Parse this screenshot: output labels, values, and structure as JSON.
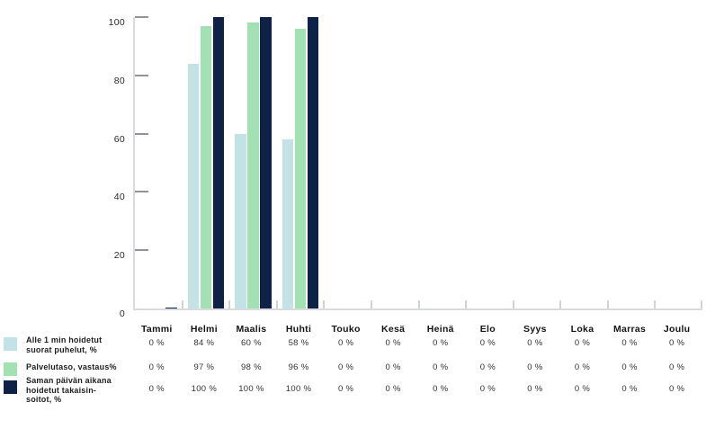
{
  "chart_data": {
    "type": "bar",
    "title": "",
    "xlabel": "",
    "ylabel": "",
    "categories": [
      "Tammi",
      "Helmi",
      "Maalis",
      "Huhti",
      "Touko",
      "Kesä",
      "Heinä",
      "Elo",
      "Syys",
      "Loka",
      "Marras",
      "Joulu"
    ],
    "series": [
      {
        "name": "Alle 1 min hoidetut suorat puhelut, %",
        "color": "#c3e2e5",
        "values": [
          0,
          84,
          60,
          58,
          0,
          0,
          0,
          0,
          0,
          0,
          0,
          0
        ]
      },
      {
        "name": "Palvelutaso, vastaus%",
        "color": "#a2e2b2",
        "values": [
          0,
          97,
          98,
          96,
          0,
          0,
          0,
          0,
          0,
          0,
          0,
          0
        ]
      },
      {
        "name": "Saman päivän aikana hoidetut takaisinsoitot, %",
        "color": "#0e2147",
        "values": [
          0.3,
          100,
          100,
          100,
          0,
          0,
          0,
          0,
          0,
          0,
          0,
          0
        ]
      }
    ],
    "ylim": [
      0,
      100
    ],
    "yticks": [
      0,
      20,
      40,
      60,
      80,
      100
    ],
    "grid": false,
    "legend_position": "bottom-left"
  },
  "legend": {
    "items": [
      {
        "color": "#c3e2e5",
        "lines": [
          "Alle 1 min hoidetut",
          "suorat puhelut, %"
        ]
      },
      {
        "color": "#a2e2b2",
        "lines": [
          "Palvelutaso, vastaus%"
        ]
      },
      {
        "color": "#0e2147",
        "lines": [
          "Saman päivän aikana",
          "hoidetut takaisin-",
          "soitot, %"
        ]
      }
    ]
  },
  "table": {
    "rows": [
      {
        "label": "Alle 1 min hoidetut suorat puhelut, %",
        "cells": [
          "0 %",
          "84 %",
          "60 %",
          "58 %",
          "0 %",
          "0 %",
          "0 %",
          "0 %",
          "0 %",
          "0 %",
          "0 %",
          "0 %"
        ]
      },
      {
        "label": "Palvelutaso, vastaus%",
        "cells": [
          "0 %",
          "97 %",
          "98 %",
          "96 %",
          "0 %",
          "0 %",
          "0 %",
          "0 %",
          "0 %",
          "0 %",
          "0 %",
          "0 %"
        ]
      },
      {
        "label": "Saman päivän aikana hoidetut takaisinsoitot, %",
        "cells": [
          "0 %",
          "100 %",
          "100 %",
          "100 %",
          "0 %",
          "0 %",
          "0 %",
          "0 %",
          "0 %",
          "0 %",
          "0 %",
          "0 %"
        ]
      }
    ]
  },
  "colors": {
    "axis": "#d9dcde",
    "y_tick": "#8f959a",
    "x_tick": "#cfd3d6",
    "background": "#ffffff",
    "text": "#1c1c1c"
  }
}
